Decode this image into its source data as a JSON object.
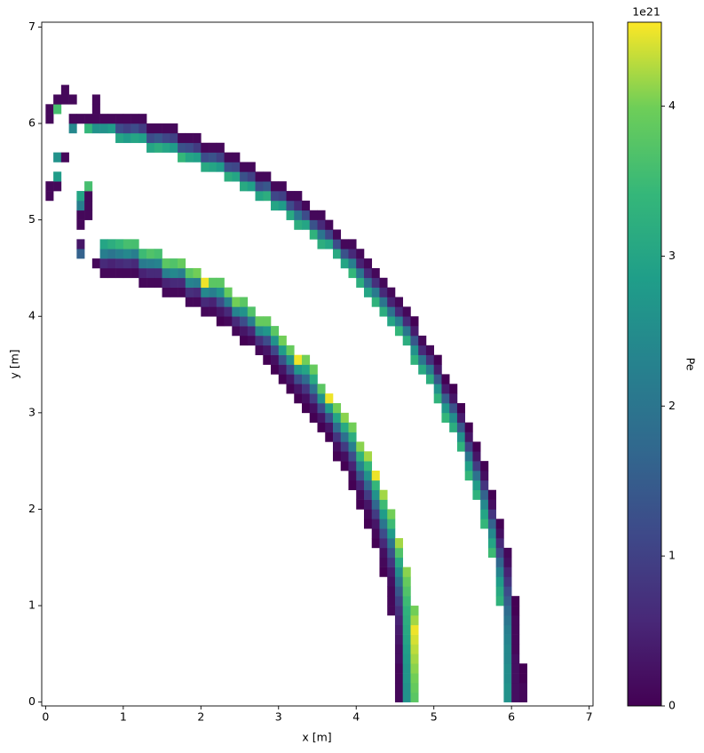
{
  "chart_data": {
    "type": "heatmap",
    "xlabel": "x [m]",
    "ylabel": "y [m]",
    "xlim": [
      -0.05,
      7.05
    ],
    "ylim": [
      -0.04,
      7.05
    ],
    "xticks": [
      0,
      1,
      2,
      3,
      4,
      5,
      6,
      7
    ],
    "yticks": [
      0,
      1,
      2,
      3,
      4,
      5,
      6,
      7
    ],
    "colorbar": {
      "label": "Pe",
      "offset_label": "1e21",
      "clim": [
        0,
        4.56
      ],
      "ticks": [
        0,
        1,
        2,
        3,
        4
      ],
      "colormap": "viridis"
    },
    "columns": [
      {
        "x": 0.0,
        "y": 5.2,
        "values": [
          0.1,
          0.1
        ]
      },
      {
        "x": 0.0,
        "y": 6.0,
        "values": [
          0.1,
          0.1
        ]
      },
      {
        "x": 0.1,
        "y": 5.3,
        "values": [
          0.1,
          2.8
        ]
      },
      {
        "x": 0.1,
        "y": 5.6,
        "values": [
          2.6
        ]
      },
      {
        "x": 0.1,
        "y": 6.1,
        "values": [
          3.6,
          0.1
        ]
      },
      {
        "x": 0.2,
        "y": 5.6,
        "values": [
          0.1
        ]
      },
      {
        "x": 0.2,
        "y": 6.2,
        "values": [
          0.1,
          0.1
        ]
      },
      {
        "x": 0.3,
        "y": 5.9,
        "values": [
          2.4,
          0.1
        ]
      },
      {
        "x": 0.3,
        "y": 6.2,
        "values": [
          0.1
        ]
      },
      {
        "x": 0.4,
        "y": 6.0,
        "values": [
          0.1
        ]
      },
      {
        "x": 0.4,
        "y": 4.6,
        "values": [
          1.6,
          0.3
        ]
      },
      {
        "x": 0.4,
        "y": 4.9,
        "values": [
          0.1,
          0.1,
          2.2,
          3.0
        ]
      },
      {
        "x": 0.5,
        "y": 5.0,
        "values": [
          0.1,
          0.1,
          0.1,
          3.6
        ]
      },
      {
        "x": 0.5,
        "y": 5.9,
        "values": [
          3.4,
          0.1
        ]
      },
      {
        "x": 0.6,
        "y": 5.9,
        "values": [
          2.6,
          0.1,
          0.1,
          0.1
        ]
      },
      {
        "x": 0.6,
        "y": 4.5,
        "values": [
          0.1
        ]
      },
      {
        "x": 0.7,
        "y": 5.9,
        "values": [
          2.6,
          0.1
        ]
      },
      {
        "x": 0.8,
        "y": 5.9,
        "values": [
          2.8,
          0.1
        ]
      },
      {
        "x": 0.9,
        "y": 5.8,
        "values": [
          3.0,
          1.2,
          0.1
        ]
      },
      {
        "x": 1.0,
        "y": 5.8,
        "values": [
          2.8,
          1.0,
          0.1
        ]
      },
      {
        "x": 1.1,
        "y": 5.8,
        "values": [
          3.0,
          1.2,
          0.1
        ]
      },
      {
        "x": 1.2,
        "y": 5.8,
        "values": [
          2.9,
          0.9,
          0.1
        ]
      },
      {
        "x": 1.3,
        "y": 5.7,
        "values": [
          3.0,
          1.2,
          0.1
        ]
      },
      {
        "x": 1.4,
        "y": 5.7,
        "values": [
          3.2,
          1.4,
          0.1
        ]
      },
      {
        "x": 1.5,
        "y": 5.7,
        "values": [
          3.0,
          1.1,
          0.1
        ]
      },
      {
        "x": 1.6,
        "y": 5.7,
        "values": [
          2.8,
          1.0,
          0.1
        ]
      },
      {
        "x": 1.7,
        "y": 5.6,
        "values": [
          3.4,
          1.3,
          0.1
        ]
      },
      {
        "x": 1.8,
        "y": 5.6,
        "values": [
          3.0,
          1.2,
          0.1
        ]
      },
      {
        "x": 1.9,
        "y": 5.6,
        "values": [
          2.9,
          0.9,
          0.1
        ]
      },
      {
        "x": 2.0,
        "y": 5.5,
        "values": [
          3.1,
          1.2,
          0.1
        ]
      },
      {
        "x": 2.1,
        "y": 5.5,
        "values": [
          3.0,
          1.3,
          0.1
        ]
      },
      {
        "x": 2.2,
        "y": 5.5,
        "values": [
          2.8,
          1.0,
          0.1
        ]
      },
      {
        "x": 2.3,
        "y": 5.4,
        "values": [
          3.2,
          1.2,
          0.1
        ]
      },
      {
        "x": 2.4,
        "y": 5.4,
        "values": [
          3.0,
          1.1,
          0.1
        ]
      },
      {
        "x": 2.5,
        "y": 5.3,
        "values": [
          3.1,
          1.3,
          0.1
        ]
      },
      {
        "x": 2.6,
        "y": 5.3,
        "values": [
          2.9,
          1.0,
          0.1
        ]
      },
      {
        "x": 2.7,
        "y": 5.2,
        "values": [
          3.0,
          1.2,
          0.1
        ]
      },
      {
        "x": 2.8,
        "y": 5.2,
        "values": [
          3.2,
          1.4,
          0.1
        ]
      },
      {
        "x": 2.9,
        "y": 5.1,
        "values": [
          3.0,
          1.1,
          0.1
        ]
      },
      {
        "x": 3.0,
        "y": 5.1,
        "values": [
          2.8,
          1.0,
          0.1
        ]
      },
      {
        "x": 3.1,
        "y": 5.0,
        "values": [
          3.1,
          1.2,
          0.1
        ]
      },
      {
        "x": 3.2,
        "y": 4.9,
        "values": [
          3.2,
          2.0,
          0.6,
          0.1
        ]
      },
      {
        "x": 3.3,
        "y": 4.9,
        "values": [
          3.0,
          1.2,
          0.1
        ]
      },
      {
        "x": 3.4,
        "y": 4.8,
        "values": [
          3.3,
          1.3,
          0.1
        ]
      },
      {
        "x": 3.5,
        "y": 4.7,
        "values": [
          3.2,
          2.0,
          0.6,
          0.1
        ]
      },
      {
        "x": 3.6,
        "y": 4.7,
        "values": [
          3.0,
          1.1,
          0.1
        ]
      },
      {
        "x": 3.7,
        "y": 4.6,
        "values": [
          3.1,
          1.2,
          0.1
        ]
      },
      {
        "x": 3.8,
        "y": 4.5,
        "values": [
          3.0,
          1.3,
          0.1
        ]
      },
      {
        "x": 3.9,
        "y": 4.4,
        "values": [
          3.4,
          2.2,
          0.6,
          0.1
        ]
      },
      {
        "x": 4.0,
        "y": 4.3,
        "values": [
          3.2,
          2.0,
          0.5,
          0.1
        ]
      },
      {
        "x": 4.1,
        "y": 4.2,
        "values": [
          3.0,
          1.8,
          0.6,
          0.1
        ]
      },
      {
        "x": 4.2,
        "y": 4.1,
        "values": [
          3.3,
          2.1,
          0.7,
          0.1
        ]
      },
      {
        "x": 4.3,
        "y": 4.0,
        "values": [
          3.2,
          2.0,
          0.6,
          0.1
        ]
      },
      {
        "x": 4.4,
        "y": 3.9,
        "values": [
          3.0,
          1.9,
          0.5,
          0.1
        ]
      },
      {
        "x": 4.5,
        "y": 3.8,
        "values": [
          3.4,
          2.2,
          0.6,
          0.1
        ]
      },
      {
        "x": 4.6,
        "y": 3.7,
        "values": [
          3.2,
          2.0,
          0.6,
          0.1
        ]
      },
      {
        "x": 4.7,
        "y": 3.5,
        "values": [
          3.3,
          2.6,
          1.4,
          0.4,
          0.0
        ]
      },
      {
        "x": 4.8,
        "y": 3.4,
        "values": [
          3.1,
          2.0,
          0.6,
          0.1
        ]
      },
      {
        "x": 4.9,
        "y": 3.3,
        "values": [
          3.2,
          2.1,
          0.7,
          0.1
        ]
      },
      {
        "x": 5.0,
        "y": 3.1,
        "values": [
          3.3,
          2.6,
          1.4,
          0.4,
          0.0
        ]
      },
      {
        "x": 5.1,
        "y": 2.9,
        "values": [
          3.4,
          2.7,
          1.5,
          0.4,
          0.0
        ]
      },
      {
        "x": 5.2,
        "y": 2.8,
        "values": [
          3.2,
          2.5,
          1.3,
          0.3,
          0.0
        ]
      },
      {
        "x": 5.3,
        "y": 2.6,
        "values": [
          3.3,
          2.6,
          1.4,
          0.4,
          0.0
        ]
      },
      {
        "x": 5.4,
        "y": 2.3,
        "values": [
          3.4,
          2.9,
          2.0,
          1.0,
          0.3,
          0.0
        ]
      },
      {
        "x": 5.5,
        "y": 2.1,
        "values": [
          3.3,
          2.8,
          1.9,
          0.9,
          0.3,
          0.0
        ]
      },
      {
        "x": 5.6,
        "y": 1.8,
        "values": [
          3.4,
          3.0,
          2.4,
          1.6,
          0.8,
          0.2,
          0.0
        ]
      },
      {
        "x": 5.7,
        "y": 1.5,
        "values": [
          3.5,
          3.0,
          2.4,
          1.6,
          0.8,
          0.2,
          0.0
        ]
      },
      {
        "x": 5.8,
        "y": 1.0,
        "values": [
          3.3,
          3.1,
          2.8,
          2.3,
          1.7,
          1.1,
          0.6,
          0.2,
          0.0
        ]
      },
      {
        "x": 5.9,
        "y": 0.0,
        "values": [
          2.6,
          2.6,
          2.5,
          2.5,
          2.4,
          2.4,
          2.3,
          2.2,
          2.0,
          1.8,
          1.5,
          1.2,
          0.8,
          0.5,
          0.2,
          0.1
        ]
      },
      {
        "x": 6.0,
        "y": 0.0,
        "values": [
          0.2,
          0.2,
          0.2,
          0.2,
          0.2,
          0.1,
          0.1,
          0.1,
          0.1,
          0.0,
          0.0
        ]
      },
      {
        "x": 6.1,
        "y": 0.0,
        "values": [
          0.1,
          0.1,
          0.0,
          0.0
        ]
      },
      {
        "x": 0.7,
        "y": 4.4,
        "values": [
          0.1,
          0.6,
          2.2,
          3.0
        ]
      },
      {
        "x": 0.8,
        "y": 4.4,
        "values": [
          0.1,
          0.5,
          2.0,
          3.2
        ]
      },
      {
        "x": 0.9,
        "y": 4.4,
        "values": [
          0.1,
          0.6,
          2.2,
          3.4
        ]
      },
      {
        "x": 1.0,
        "y": 4.4,
        "values": [
          0.1,
          0.7,
          2.4,
          3.6
        ]
      },
      {
        "x": 1.1,
        "y": 4.4,
        "values": [
          0.1,
          0.6,
          2.2,
          3.6
        ]
      },
      {
        "x": 1.2,
        "y": 4.3,
        "values": [
          0.1,
          0.5,
          2.1,
          3.5
        ]
      },
      {
        "x": 1.3,
        "y": 4.3,
        "values": [
          0.1,
          0.6,
          2.2,
          3.7
        ]
      },
      {
        "x": 1.4,
        "y": 4.3,
        "values": [
          0.1,
          0.6,
          2.3,
          3.6
        ]
      },
      {
        "x": 1.5,
        "y": 4.2,
        "values": [
          0.1,
          0.5,
          2.2,
          3.8
        ]
      },
      {
        "x": 1.6,
        "y": 4.2,
        "values": [
          0.1,
          0.6,
          2.4,
          3.7
        ]
      },
      {
        "x": 1.7,
        "y": 4.2,
        "values": [
          0.1,
          0.6,
          2.2,
          3.9
        ]
      },
      {
        "x": 1.8,
        "y": 4.1,
        "values": [
          0.1,
          0.7,
          2.3,
          3.8
        ]
      },
      {
        "x": 1.9,
        "y": 4.1,
        "values": [
          0.1,
          0.6,
          2.2,
          4.0
        ]
      },
      {
        "x": 2.0,
        "y": 4.0,
        "values": [
          0.1,
          0.6,
          2.4,
          4.5
        ]
      },
      {
        "x": 2.1,
        "y": 4.0,
        "values": [
          0.1,
          0.5,
          2.2,
          3.8
        ]
      },
      {
        "x": 2.2,
        "y": 3.9,
        "values": [
          0.0,
          0.3,
          1.2,
          2.6,
          3.8
        ]
      },
      {
        "x": 2.3,
        "y": 3.9,
        "values": [
          0.1,
          0.6,
          2.2,
          3.9
        ]
      },
      {
        "x": 2.4,
        "y": 3.8,
        "values": [
          0.1,
          0.6,
          2.3,
          4.0
        ]
      },
      {
        "x": 2.5,
        "y": 3.7,
        "values": [
          0.0,
          0.3,
          1.2,
          2.6,
          3.8
        ]
      },
      {
        "x": 2.6,
        "y": 3.7,
        "values": [
          0.1,
          0.6,
          2.2,
          3.7
        ]
      },
      {
        "x": 2.7,
        "y": 3.6,
        "values": [
          0.1,
          0.7,
          2.4,
          3.9
        ]
      },
      {
        "x": 2.8,
        "y": 3.5,
        "values": [
          0.0,
          0.3,
          1.2,
          2.7,
          3.9
        ]
      },
      {
        "x": 2.9,
        "y": 3.4,
        "values": [
          0.0,
          0.2,
          1.1,
          2.6,
          3.8
        ]
      },
      {
        "x": 3.0,
        "y": 3.3,
        "values": [
          0.0,
          0.3,
          1.3,
          2.8,
          4.0
        ]
      },
      {
        "x": 3.1,
        "y": 3.2,
        "values": [
          0.0,
          0.3,
          1.2,
          2.6,
          3.9
        ]
      },
      {
        "x": 3.2,
        "y": 3.1,
        "values": [
          0.0,
          0.3,
          1.2,
          2.7,
          4.5
        ]
      },
      {
        "x": 3.3,
        "y": 3.0,
        "values": [
          0.0,
          0.2,
          0.8,
          1.8,
          3.0,
          4.0
        ]
      },
      {
        "x": 3.4,
        "y": 2.9,
        "values": [
          0.0,
          0.2,
          0.9,
          1.9,
          3.1,
          3.9
        ]
      },
      {
        "x": 3.5,
        "y": 2.8,
        "values": [
          0.0,
          0.3,
          1.2,
          2.6,
          3.8
        ]
      },
      {
        "x": 3.6,
        "y": 2.7,
        "values": [
          0.0,
          0.3,
          1.3,
          2.8,
          4.5
        ]
      },
      {
        "x": 3.7,
        "y": 2.5,
        "values": [
          0.0,
          0.2,
          0.8,
          1.8,
          3.0,
          4.0
        ]
      },
      {
        "x": 3.8,
        "y": 2.4,
        "values": [
          0.0,
          0.2,
          0.9,
          1.9,
          3.1,
          4.1
        ]
      },
      {
        "x": 3.9,
        "y": 2.2,
        "values": [
          0.0,
          0.1,
          0.5,
          1.2,
          2.2,
          3.2,
          4.0
        ]
      },
      {
        "x": 4.0,
        "y": 2.0,
        "values": [
          0.0,
          0.1,
          0.5,
          1.3,
          2.3,
          3.3,
          4.1
        ]
      },
      {
        "x": 4.1,
        "y": 1.8,
        "values": [
          0.0,
          0.1,
          0.3,
          0.9,
          1.7,
          2.6,
          3.4,
          4.2
        ]
      },
      {
        "x": 4.2,
        "y": 1.6,
        "values": [
          0.0,
          0.1,
          0.3,
          0.9,
          1.7,
          2.6,
          3.4,
          4.5
        ]
      },
      {
        "x": 4.3,
        "y": 1.3,
        "values": [
          0.0,
          0.1,
          0.2,
          0.6,
          1.2,
          2.0,
          2.8,
          3.5,
          4.2
        ]
      },
      {
        "x": 4.4,
        "y": 0.9,
        "values": [
          0.1,
          0.1,
          0.1,
          0.2,
          0.4,
          0.8,
          1.3,
          2.0,
          2.8,
          3.5,
          4.0
        ]
      },
      {
        "x": 4.5,
        "y": 0.0,
        "values": [
          0.1,
          0.1,
          0.1,
          0.1,
          0.2,
          0.2,
          0.3,
          0.4,
          0.5,
          0.7,
          1.0,
          1.4,
          1.9,
          2.5,
          3.1,
          3.7,
          4.2
        ]
      },
      {
        "x": 4.6,
        "y": 0.0,
        "values": [
          2.6,
          2.6,
          2.7,
          2.7,
          2.8,
          2.9,
          3.0,
          3.1,
          3.2,
          3.3,
          3.5,
          3.7,
          3.9,
          4.1
        ]
      },
      {
        "x": 4.7,
        "y": 0.0,
        "values": [
          3.8,
          3.9,
          4.0,
          4.1,
          4.2,
          4.3,
          4.4,
          4.5,
          4.2,
          4.0
        ]
      }
    ]
  }
}
